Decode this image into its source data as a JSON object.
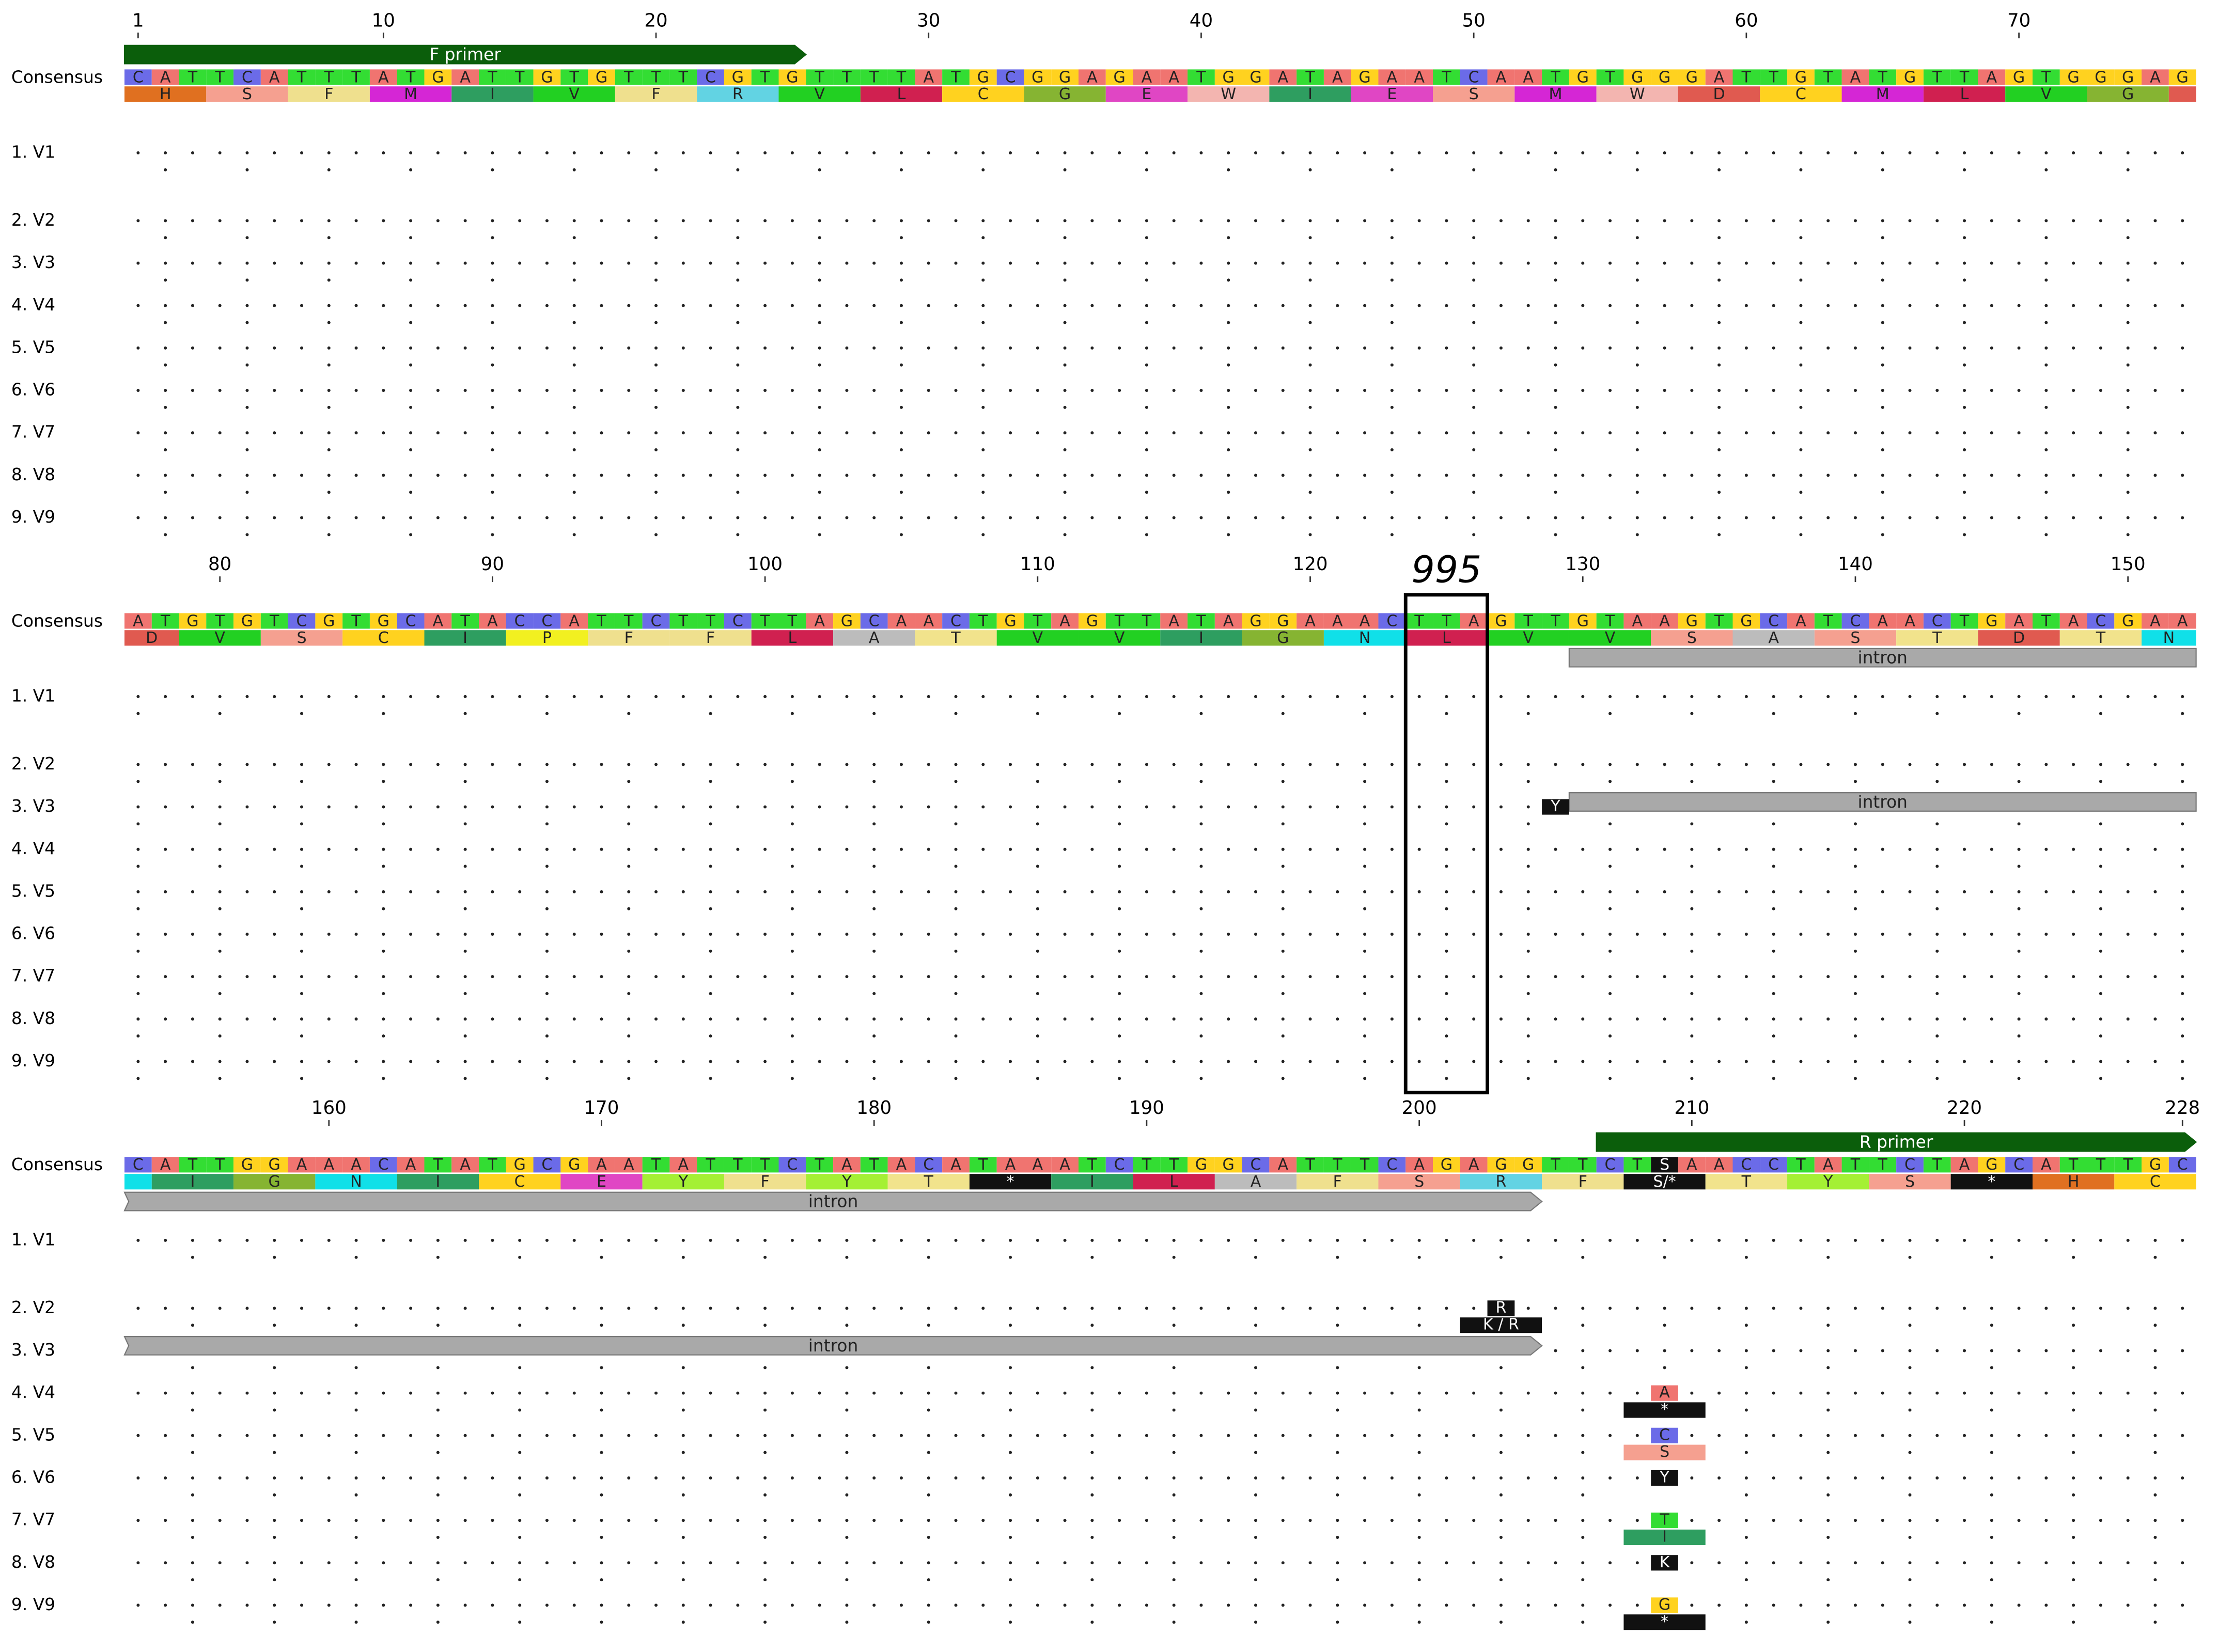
{
  "consensus_label": "Consensus",
  "sequences": [
    "1. V1",
    "2. V2",
    "3. V3",
    "4. V4",
    "5. V5",
    "6. V6",
    "7. V7",
    "8. V8",
    "9. V9"
  ],
  "ruler_ticks": [
    1,
    10,
    20,
    30,
    40,
    50,
    60,
    70,
    80,
    90,
    100,
    110,
    120,
    130,
    140,
    150,
    160,
    170,
    180,
    190,
    200,
    210,
    220,
    228
  ],
  "consensus": [
    "CATTCATTTATGATTGTGTTTCGTGTTTTATGCGGAGAATGGATAGAATCAATGTGGGATTGTATGTTAGTGGGAG",
    "ATGTGTCGTGCATACCATTCTTCTTAGCAACTGTAGTTATAGGAAACTTAGTTGTAAGTGCATCAACTGATACGAA",
    "CATTGGAAACATATGCGAATATTTCTATACATAAATCTTGGCATTTCAGAGGTTCTSAACCTATTCTAGCATTTGC"
  ],
  "translation": [
    "H",
    "S",
    "F",
    "M",
    "I",
    "V",
    "F",
    "R",
    "V",
    "L",
    "C",
    "G",
    "E",
    "W",
    "I",
    "E",
    "S",
    "M",
    "W",
    "D",
    "C",
    "M",
    "L",
    "V",
    "G",
    "D",
    "V",
    "S",
    "C",
    "I",
    "P",
    "F",
    "F",
    "L",
    "A",
    "T",
    "V",
    "V",
    "I",
    "G",
    "N",
    "L",
    "V",
    "V",
    "S",
    "A",
    "S",
    "T",
    "D",
    "T",
    "N",
    "I",
    "G",
    "N",
    "I",
    "C",
    "E",
    "Y",
    "F",
    "Y",
    "T",
    "*",
    "I",
    "L",
    "A",
    "F",
    "S",
    "R",
    "F",
    "S/*",
    "T",
    "Y",
    "S",
    "*",
    "H",
    "C"
  ],
  "features": [
    {
      "name": "F primer",
      "start": 1,
      "end": 25,
      "track": 0,
      "placement": "above",
      "color": "#0b5e0b"
    },
    {
      "name": "intron",
      "start": 130,
      "end": 204,
      "track": 0,
      "placement": "below",
      "color": "#a9a9a9"
    },
    {
      "name": "intron",
      "start": 130,
      "end": 204,
      "track": 1,
      "placement": "below",
      "color": "#a9a9a9"
    },
    {
      "name": "R primer",
      "start": 207,
      "end": 228,
      "track": 0,
      "placement": "above",
      "color": "#0b5e0b"
    }
  ],
  "highlight": {
    "label": "995",
    "start": 124,
    "end": 126
  },
  "variants": [
    {
      "sequence": 2,
      "position": 129,
      "base": "Y"
    },
    {
      "sequence": 1,
      "position": 203,
      "base": "R",
      "aa": "K / R"
    },
    {
      "sequence": 3,
      "position": 209,
      "base": "A",
      "aa": "*"
    },
    {
      "sequence": 4,
      "position": 209,
      "base": "C",
      "aa": "S"
    },
    {
      "sequence": 5,
      "position": 209,
      "base": "Y"
    },
    {
      "sequence": 6,
      "position": 209,
      "base": "T",
      "aa": "I"
    },
    {
      "sequence": 7,
      "position": 209,
      "base": "K"
    },
    {
      "sequence": 8,
      "position": 209,
      "base": "G",
      "aa": "*"
    }
  ],
  "base_colors": {
    "A": "#f07470",
    "T": "#33dd33",
    "G": "#ffd21f",
    "C": "#6b6be8",
    "S": "#111111",
    "R": "#111111",
    "K": "#111111",
    "Y": "#111111"
  },
  "aa_colors": {
    "H": "#e07020",
    "S": "#f5a090",
    "F": "#efe08e",
    "M": "#d526d5",
    "I": "#2e9e60",
    "V": "#22d022",
    "R": "#62d3e3",
    "L": "#d02050",
    "C": "#ffd21f",
    "G": "#86b432",
    "E": "#e046c4",
    "W": "#f3b5b0",
    "D": "#e05a50",
    "P": "#f2f020",
    "A": "#bcbcbc",
    "T": "#f1e38c",
    "N": "#10e0e8",
    "Y": "#a4f034",
    "*": "#111111",
    "S/*": "#111111"
  }
}
